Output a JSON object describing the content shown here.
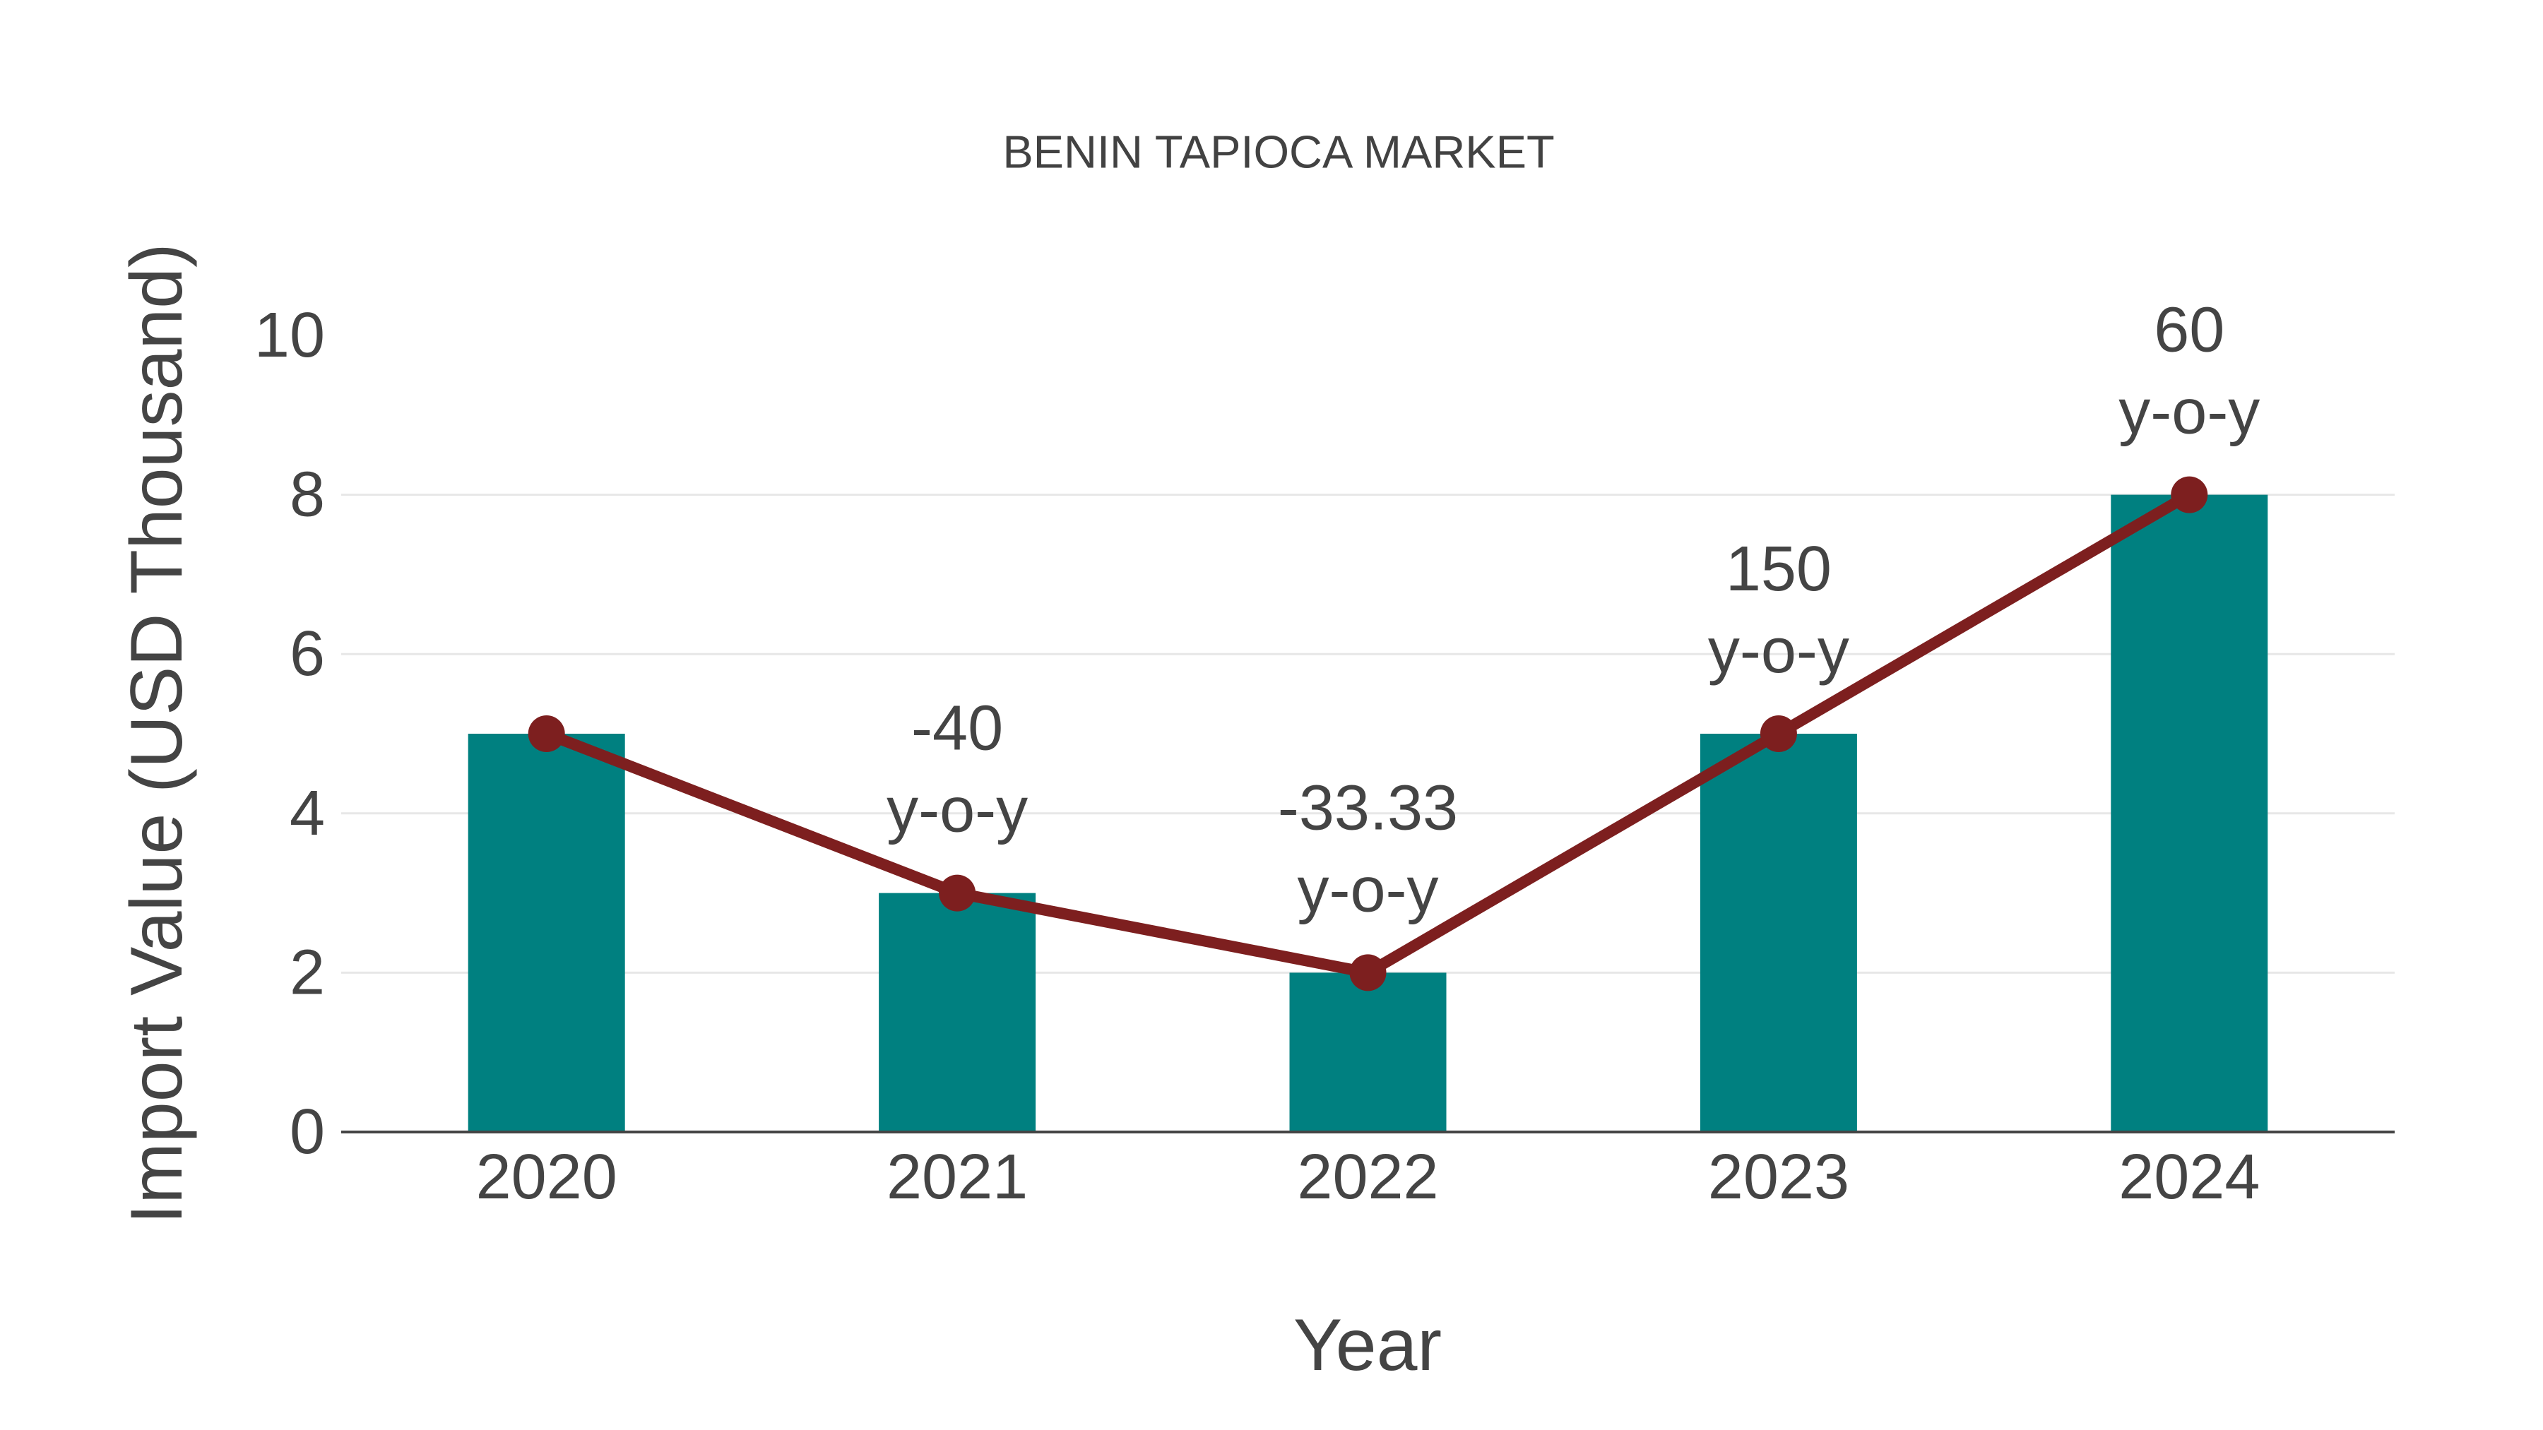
{
  "page": {
    "background": "#FFFFFF"
  },
  "chart_data": {
    "type": "bar+line",
    "title": "BENIN TAPIOCA MARKET",
    "xlabel": "Year",
    "ylabel": "Import Value (USD Thousand)",
    "categories": [
      "2020",
      "2021",
      "2022",
      "2023",
      "2024"
    ],
    "series": [
      {
        "name": "Import Value (USD Thousand)",
        "type": "bar",
        "values": [
          5,
          3,
          2,
          5,
          8
        ],
        "color": "#008080"
      },
      {
        "name": "y-o-y",
        "type": "line",
        "values": [
          5,
          3,
          2,
          5,
          8
        ],
        "color": "#7D1F1F"
      }
    ],
    "annotations": [
      {
        "category": "2021",
        "lines": [
          "-40",
          "y-o-y"
        ]
      },
      {
        "category": "2022",
        "lines": [
          "-33.33",
          "y-o-y"
        ]
      },
      {
        "category": "2023",
        "lines": [
          "150",
          "y-o-y"
        ]
      },
      {
        "category": "2024",
        "lines": [
          "60",
          "y-o-y"
        ]
      }
    ],
    "ylim": [
      0,
      10
    ],
    "yticks": [
      0,
      2,
      4,
      6,
      8,
      10
    ],
    "grid": {
      "show": true,
      "values": [
        2,
        4,
        6,
        8
      ]
    },
    "legend": {
      "show": false
    }
  },
  "colors": {
    "bar": "#008080",
    "line": "#7D1F1F",
    "grid": "#E7E7E7",
    "axis_line": "#444444",
    "tick_text": "#444444",
    "annotation_text": "#444444",
    "axis_title_text": "#444444",
    "title_text": "#424242",
    "background": "#FFFFFF"
  }
}
